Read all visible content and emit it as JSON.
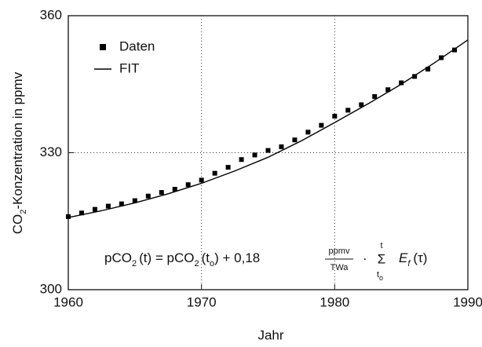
{
  "chart_data": {
    "type": "scatter",
    "x_label": "Jahr",
    "y_label": [
      "CO",
      "2",
      "-Konzentration in ppmv"
    ],
    "xlim": [
      1960,
      1990
    ],
    "ylim": [
      300,
      360
    ],
    "xticks": [
      1960,
      1970,
      1980,
      1990
    ],
    "yticks": [
      300,
      330,
      360
    ],
    "grid": true,
    "series": [
      {
        "name": "Daten",
        "type": "scatter",
        "color": "#000000",
        "x": [
          1960,
          1961,
          1962,
          1963,
          1964,
          1965,
          1966,
          1967,
          1968,
          1969,
          1970,
          1971,
          1972,
          1973,
          1974,
          1975,
          1976,
          1977,
          1978,
          1979,
          1980,
          1981,
          1982,
          1983,
          1984,
          1985,
          1986,
          1987,
          1988,
          1989
        ],
        "values": [
          316.0,
          316.8,
          317.6,
          318.3,
          318.8,
          319.5,
          320.5,
          321.3,
          322.0,
          323.0,
          324.0,
          325.5,
          326.8,
          328.5,
          329.5,
          330.5,
          331.3,
          332.8,
          334.5,
          336.0,
          338.0,
          339.3,
          340.5,
          342.3,
          343.8,
          345.3,
          346.7,
          348.3,
          350.8,
          352.5
        ]
      },
      {
        "name": "FIT",
        "type": "line",
        "color": "#000000",
        "x": [
          1960,
          1962.5,
          1965,
          1967.5,
          1970,
          1972.5,
          1975,
          1977.5,
          1980,
          1982.5,
          1985,
          1987.5,
          1990
        ],
        "values": [
          315.8,
          317.3,
          319.0,
          321.0,
          323.3,
          326.0,
          329.0,
          332.6,
          336.6,
          340.7,
          345.0,
          349.7,
          354.7
        ]
      }
    ],
    "annotation": [
      "pCO",
      "2",
      "(t) = pCO",
      "2",
      "(t",
      "o",
      ") + 0,18",
      "ppmv",
      "TWa",
      "·",
      "Σ",
      "t",
      "t",
      "o",
      "E",
      "f",
      "(τ)"
    ]
  }
}
